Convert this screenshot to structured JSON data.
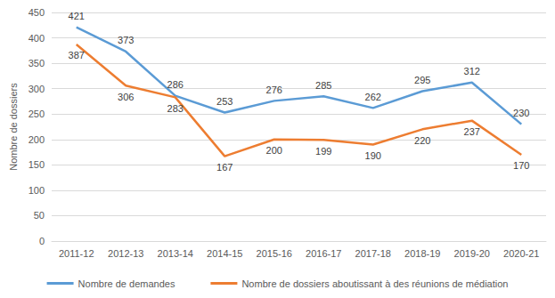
{
  "chart_data": {
    "type": "line",
    "y_label": "Nombre de dossiers",
    "categories": [
      "2011-12",
      "2012-13",
      "2013-14",
      "2014-15",
      "2015-16",
      "2016-17",
      "2017-18",
      "2018-19",
      "2019-20",
      "2020-21"
    ],
    "series": [
      {
        "name": "Nombre de demandes",
        "color": "#5b9bd5",
        "values": [
          421,
          373,
          286,
          253,
          276,
          285,
          262,
          295,
          312,
          230
        ]
      },
      {
        "name": "Nombre de dossiers aboutissant à des réunions de médiation",
        "color": "#ed7d31",
        "values": [
          387,
          306,
          283,
          167,
          200,
          199,
          190,
          220,
          237,
          170
        ]
      }
    ],
    "ylim": [
      0,
      450
    ],
    "yticks": [
      0,
      50,
      100,
      150,
      200,
      250,
      300,
      350,
      400,
      450
    ],
    "grid": true,
    "legend": "bottom",
    "data_labels": true
  }
}
